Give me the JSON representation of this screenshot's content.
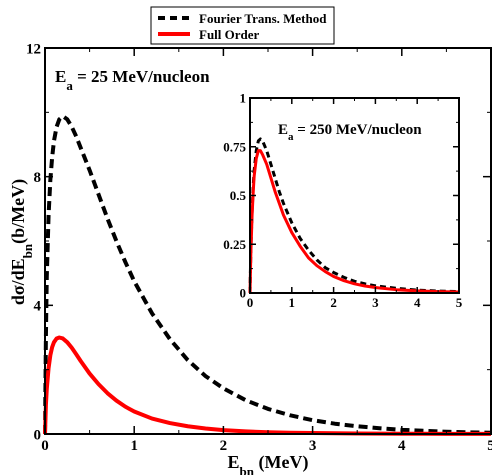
{
  "chart_data": [
    {
      "type": "line",
      "panel": "main",
      "annotation": {
        "symbol": "E",
        "sub": "a",
        "rest": " = 25 MeV/nucleon"
      },
      "xlabel": {
        "main": "E",
        "sub": "bn",
        "rest": " (MeV)"
      },
      "ylabel": {
        "pre": "dσ/dE",
        "sub": "bn",
        "rest": "(b/MeV)"
      },
      "xlim": [
        0,
        5
      ],
      "ylim": [
        0,
        12
      ],
      "xticks": [
        0,
        1,
        2,
        3,
        4,
        5
      ],
      "yticks": [
        0,
        4,
        8,
        12
      ],
      "legend": {
        "position": "top-center",
        "entries": [
          "Fourier Trans. Method",
          "Full Order"
        ]
      },
      "series": [
        {
          "name": "Fourier Trans. Method",
          "color": "#000000",
          "style": "dashed",
          "x": [
            0,
            0.01,
            0.02,
            0.04,
            0.06,
            0.08,
            0.1,
            0.13,
            0.16,
            0.2,
            0.25,
            0.3,
            0.35,
            0.4,
            0.5,
            0.6,
            0.7,
            0.8,
            0.9,
            1.0,
            1.2,
            1.4,
            1.6,
            1.8,
            2.0,
            2.25,
            2.5,
            2.75,
            3.0,
            3.25,
            3.5,
            3.75,
            4.0,
            4.25,
            4.5,
            4.75,
            5.0
          ],
          "y": [
            0,
            3.0,
            4.9,
            6.8,
            7.9,
            8.6,
            9.1,
            9.55,
            9.78,
            9.88,
            9.78,
            9.55,
            9.25,
            8.9,
            8.2,
            7.45,
            6.7,
            6.0,
            5.35,
            4.75,
            3.75,
            2.95,
            2.3,
            1.8,
            1.42,
            1.05,
            0.78,
            0.58,
            0.43,
            0.32,
            0.24,
            0.18,
            0.13,
            0.1,
            0.07,
            0.05,
            0.04
          ]
        },
        {
          "name": "Full Order",
          "color": "#ff0000",
          "style": "solid",
          "x": [
            0,
            0.01,
            0.02,
            0.04,
            0.06,
            0.08,
            0.1,
            0.13,
            0.16,
            0.2,
            0.25,
            0.3,
            0.35,
            0.4,
            0.5,
            0.6,
            0.7,
            0.8,
            0.9,
            1.0,
            1.2,
            1.4,
            1.6,
            1.8,
            2.0,
            2.25,
            2.5,
            2.75,
            3.0,
            3.25,
            3.5,
            3.75,
            4.0,
            4.25,
            4.5,
            4.75,
            5.0
          ],
          "y": [
            0,
            0.9,
            1.4,
            2.05,
            2.45,
            2.7,
            2.85,
            2.97,
            3.0,
            2.97,
            2.85,
            2.68,
            2.48,
            2.27,
            1.88,
            1.55,
            1.27,
            1.04,
            0.85,
            0.7,
            0.48,
            0.34,
            0.24,
            0.17,
            0.12,
            0.08,
            0.055,
            0.04,
            0.03,
            0.022,
            0.016,
            0.012,
            0.009,
            0.007,
            0.005,
            0.004,
            0.003
          ]
        }
      ]
    },
    {
      "type": "line",
      "panel": "inset",
      "annotation": {
        "symbol": "E",
        "sub": "a",
        "rest": " = 250 MeV/nucleon"
      },
      "xlim": [
        0,
        5
      ],
      "ylim": [
        0,
        1
      ],
      "xticks": [
        0,
        1,
        2,
        3,
        4,
        5
      ],
      "yticks": [
        0,
        0.25,
        0.5,
        0.75,
        1
      ],
      "series": [
        {
          "name": "Fourier Trans. Method",
          "color": "#000000",
          "style": "dashed",
          "x": [
            0,
            0.02,
            0.05,
            0.08,
            0.1,
            0.15,
            0.2,
            0.25,
            0.3,
            0.4,
            0.5,
            0.6,
            0.7,
            0.8,
            1.0,
            1.2,
            1.4,
            1.6,
            1.8,
            2.0,
            2.25,
            2.5,
            2.75,
            3.0,
            3.5,
            4.0,
            4.5,
            5.0
          ],
          "y": [
            0,
            0.22,
            0.42,
            0.56,
            0.63,
            0.73,
            0.78,
            0.79,
            0.78,
            0.73,
            0.66,
            0.59,
            0.52,
            0.46,
            0.36,
            0.28,
            0.22,
            0.17,
            0.13,
            0.105,
            0.08,
            0.06,
            0.047,
            0.037,
            0.024,
            0.015,
            0.01,
            0.007
          ]
        },
        {
          "name": "Full Order",
          "color": "#ff0000",
          "style": "solid",
          "x": [
            0,
            0.02,
            0.05,
            0.08,
            0.1,
            0.15,
            0.2,
            0.25,
            0.3,
            0.4,
            0.5,
            0.6,
            0.7,
            0.8,
            1.0,
            1.2,
            1.4,
            1.6,
            1.8,
            2.0,
            2.25,
            2.5,
            2.75,
            3.0,
            3.5,
            4.0,
            4.5,
            5.0
          ],
          "y": [
            0,
            0.2,
            0.4,
            0.53,
            0.6,
            0.69,
            0.73,
            0.73,
            0.71,
            0.66,
            0.59,
            0.52,
            0.46,
            0.4,
            0.31,
            0.24,
            0.18,
            0.14,
            0.11,
            0.085,
            0.063,
            0.047,
            0.036,
            0.028,
            0.017,
            0.011,
            0.007,
            0.005
          ]
        }
      ]
    }
  ]
}
